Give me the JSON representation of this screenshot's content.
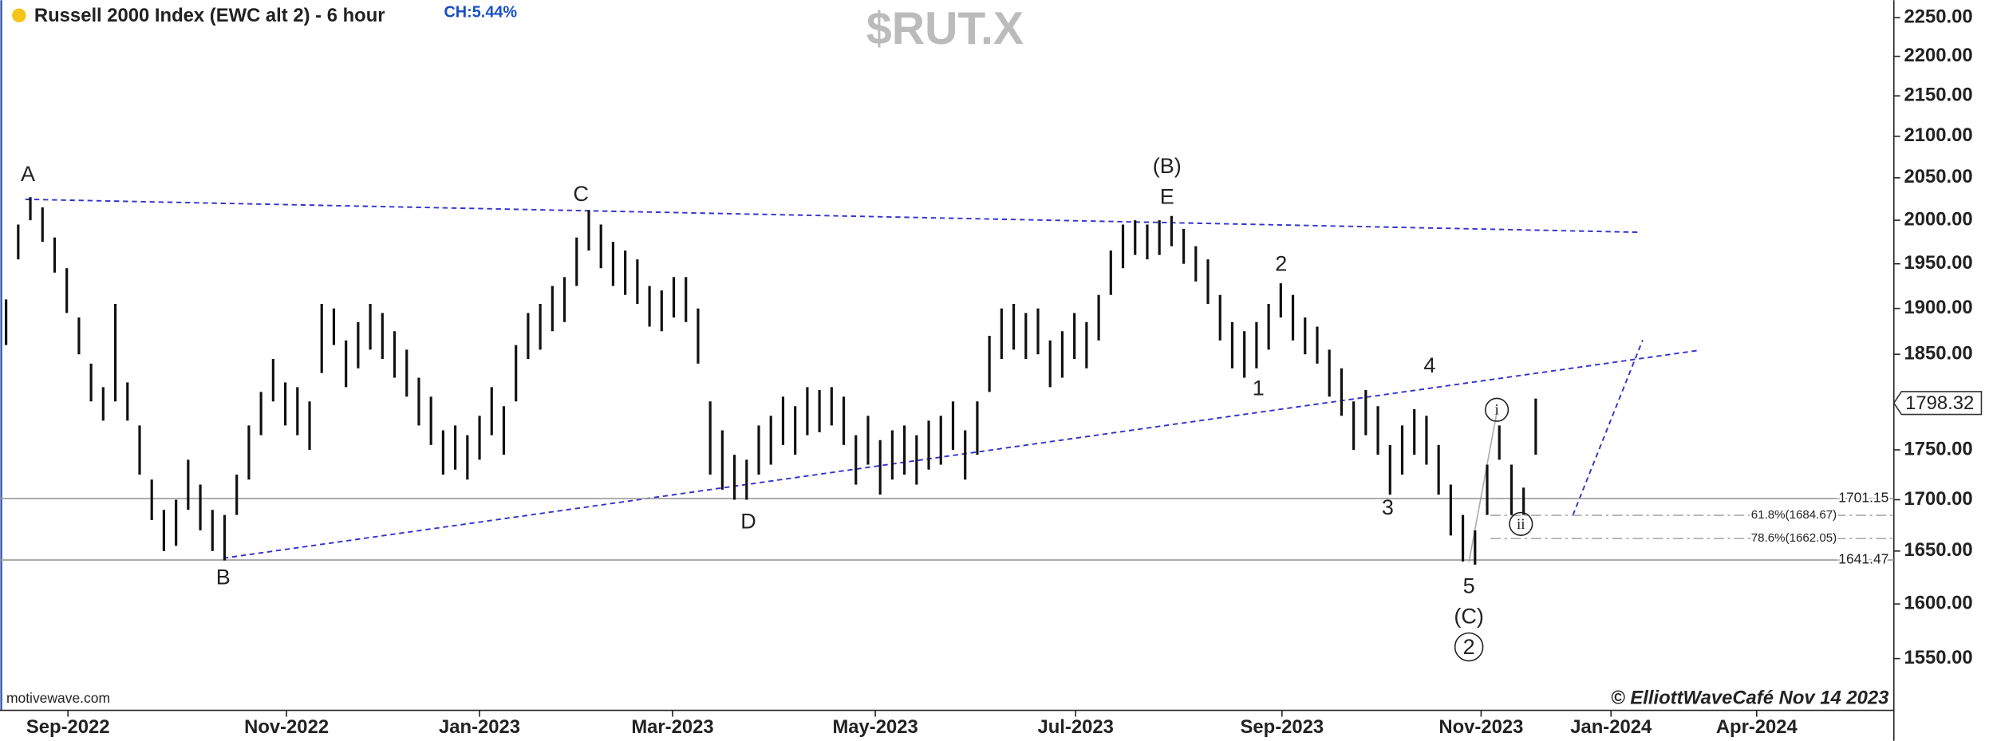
{
  "chart_data": {
    "type": "range_bar",
    "title": "Russell 2000 Index (EWC alt 2) - 6 hour",
    "change_label": "CH:5.44%",
    "watermark": "$RUT.X",
    "source": "motivewave.com",
    "copyright": "© ElliottWaveCafé Nov 14 2023",
    "log_scale": true,
    "bar_color": "#111111",
    "xlim": [
      -0.5,
      155.5
    ],
    "xticks": [
      {
        "value": 5.1,
        "label": "Sep-2022"
      },
      {
        "value": 23.1,
        "label": "Nov-2022"
      },
      {
        "value": 39,
        "label": "Jan-2023"
      },
      {
        "value": 54.9,
        "label": "Mar-2023"
      },
      {
        "value": 71.6,
        "label": "May-2023"
      },
      {
        "value": 88.1,
        "label": "Jul-2023"
      },
      {
        "value": 105.1,
        "label": "Sep-2023"
      },
      {
        "value": 121.5,
        "label": "Nov-2023"
      },
      {
        "value": 132.2,
        "label": "Jan-2024"
      },
      {
        "value": 144.2,
        "label": "Apr-2024"
      }
    ],
    "ylim": [
      1504,
      2273
    ],
    "yticks": [
      {
        "value": 2250,
        "label": "2250.00"
      },
      {
        "value": 2200,
        "label": "2200.00"
      },
      {
        "value": 2150,
        "label": "2150.00"
      },
      {
        "value": 2100,
        "label": "2100.00"
      },
      {
        "value": 2050,
        "label": "2050.00"
      },
      {
        "value": 2000,
        "label": "2000.00"
      },
      {
        "value": 1950,
        "label": "1950.00"
      },
      {
        "value": 1900,
        "label": "1900.00"
      },
      {
        "value": 1850,
        "label": "1850.00"
      },
      {
        "value": 1750,
        "label": "1750.00"
      },
      {
        "value": 1700,
        "label": "1700.00"
      },
      {
        "value": 1650,
        "label": "1650.00"
      },
      {
        "value": 1600,
        "label": "1600.00"
      },
      {
        "value": 1550,
        "label": "1550.00"
      }
    ],
    "last_price": 1798.32,
    "levels": [
      1701.15,
      1641.47
    ],
    "fib_levels": [
      {
        "value": 1684.67,
        "label": "61.8%(1684.67)"
      },
      {
        "value": 1662.05,
        "label": "78.6%(1662.05)"
      }
    ],
    "wave_labels": [
      "A",
      "B",
      "C",
      "D",
      "(B)",
      "E",
      "1",
      "2",
      "3",
      "4",
      "5",
      "(C)",
      "2",
      "i",
      "ii"
    ],
    "high": [
      1910,
      1995,
      2027,
      2015,
      1980,
      1945,
      1890,
      1840,
      1815,
      1905,
      1820,
      1775,
      1720,
      1690,
      1700,
      1740,
      1715,
      1690,
      1685,
      1725,
      1775,
      1810,
      1845,
      1820,
      1815,
      1800,
      1905,
      1900,
      1865,
      1885,
      1905,
      1895,
      1875,
      1855,
      1825,
      1805,
      1770,
      1775,
      1765,
      1785,
      1815,
      1795,
      1860,
      1895,
      1905,
      1925,
      1935,
      1980,
      2012,
      1995,
      1975,
      1965,
      1955,
      1925,
      1920,
      1935,
      1935,
      1900,
      1800,
      1770,
      1745,
      1740,
      1775,
      1785,
      1805,
      1795,
      1815,
      1812,
      1815,
      1805,
      1765,
      1785,
      1760,
      1770,
      1775,
      1765,
      1780,
      1785,
      1800,
      1770,
      1800,
      1870,
      1900,
      1905,
      1895,
      1900,
      1865,
      1875,
      1895,
      1885,
      1915,
      1965,
      1995,
      2000,
      1995,
      2000,
      2005,
      1990,
      1970,
      1955,
      1915,
      1885,
      1875,
      1885,
      1905,
      1928,
      1915,
      1890,
      1880,
      1855,
      1835,
      1800,
      1812,
      1795,
      1755,
      1775,
      1792,
      1785,
      1755,
      1715,
      1685,
      1670,
      1735,
      1775,
      1735,
      1712,
      1803
    ],
    "low": [
      1860,
      1955,
      2000,
      1975,
      1940,
      1895,
      1850,
      1800,
      1780,
      1800,
      1780,
      1725,
      1680,
      1650,
      1655,
      1690,
      1670,
      1650,
      1641,
      1685,
      1720,
      1765,
      1800,
      1775,
      1765,
      1750,
      1830,
      1860,
      1815,
      1835,
      1855,
      1845,
      1825,
      1805,
      1775,
      1755,
      1725,
      1730,
      1720,
      1740,
      1765,
      1745,
      1800,
      1845,
      1855,
      1875,
      1885,
      1925,
      1965,
      1945,
      1925,
      1915,
      1905,
      1880,
      1875,
      1890,
      1885,
      1840,
      1725,
      1710,
      1700,
      1700,
      1725,
      1735,
      1755,
      1745,
      1765,
      1768,
      1775,
      1755,
      1715,
      1735,
      1705,
      1720,
      1725,
      1715,
      1730,
      1735,
      1750,
      1720,
      1745,
      1810,
      1845,
      1855,
      1845,
      1850,
      1815,
      1825,
      1845,
      1835,
      1865,
      1915,
      1945,
      1960,
      1955,
      1960,
      1970,
      1950,
      1930,
      1905,
      1865,
      1835,
      1825,
      1835,
      1855,
      1890,
      1865,
      1850,
      1840,
      1805,
      1785,
      1750,
      1765,
      1745,
      1705,
      1725,
      1745,
      1735,
      1705,
      1665,
      1640,
      1637,
      1685,
      1740,
      1685,
      1685,
      1745
    ]
  }
}
